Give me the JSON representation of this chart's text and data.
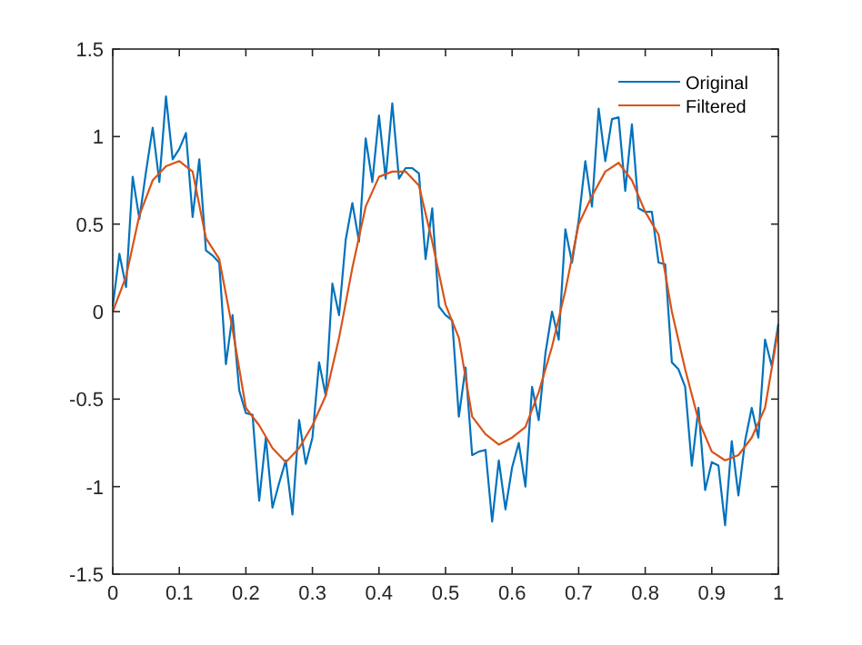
{
  "chart_data": {
    "type": "line",
    "xlim": [
      0,
      1
    ],
    "ylim": [
      -1.5,
      1.5
    ],
    "xticks": [
      0,
      0.1,
      0.2,
      0.3,
      0.4,
      0.5,
      0.6,
      0.7,
      0.8,
      0.9,
      1
    ],
    "yticks": [
      -1.5,
      -1,
      -0.5,
      0,
      0.5,
      1,
      1.5
    ],
    "grid": false,
    "legend": "top right",
    "line_style": "solid",
    "marker": "none",
    "series": [
      {
        "name": "Original",
        "color": "#0072bd",
        "x": [
          0,
          0.01,
          0.02,
          0.03,
          0.04,
          0.05,
          0.06,
          0.07,
          0.08,
          0.09,
          0.1,
          0.11,
          0.12,
          0.13,
          0.14,
          0.15,
          0.16,
          0.17,
          0.18,
          0.19,
          0.2,
          0.21,
          0.22,
          0.23,
          0.24,
          0.25,
          0.26,
          0.27,
          0.28,
          0.29,
          0.3,
          0.31,
          0.32,
          0.33,
          0.34,
          0.35,
          0.36,
          0.37,
          0.38,
          0.39,
          0.4,
          0.41,
          0.42,
          0.43,
          0.44,
          0.45,
          0.46,
          0.47,
          0.48,
          0.49,
          0.5,
          0.51,
          0.52,
          0.53,
          0.54,
          0.55,
          0.56,
          0.57,
          0.58,
          0.59,
          0.6,
          0.61,
          0.62,
          0.63,
          0.64,
          0.65,
          0.66,
          0.67,
          0.68,
          0.69,
          0.7,
          0.71,
          0.72,
          0.73,
          0.74,
          0.75,
          0.76,
          0.77,
          0.78,
          0.79,
          0.8,
          0.81,
          0.82,
          0.83,
          0.84,
          0.85,
          0.86,
          0.87,
          0.88,
          0.89,
          0.9,
          0.91,
          0.92,
          0.93,
          0.94,
          0.95,
          0.96,
          0.97,
          0.98,
          0.99,
          1
        ],
        "values": [
          0.03,
          0.33,
          0.14,
          0.77,
          0.53,
          0.8,
          1.05,
          0.74,
          1.23,
          0.87,
          0.93,
          1.02,
          0.54,
          0.87,
          0.35,
          0.32,
          0.28,
          -0.3,
          -0.02,
          -0.45,
          -0.58,
          -0.59,
          -1.08,
          -0.72,
          -1.12,
          -0.98,
          -0.85,
          -1.16,
          -0.62,
          -0.87,
          -0.72,
          -0.29,
          -0.48,
          0.16,
          -0.02,
          0.41,
          0.62,
          0.4,
          0.99,
          0.74,
          1.12,
          0.76,
          1.19,
          0.76,
          0.82,
          0.82,
          0.79,
          0.3,
          0.59,
          0.03,
          -0.02,
          -0.05,
          -0.6,
          -0.32,
          -0.82,
          -0.8,
          -0.79,
          -1.2,
          -0.85,
          -1.13,
          -0.89,
          -0.75,
          -1.0,
          -0.43,
          -0.62,
          -0.24,
          0.0,
          -0.16,
          0.47,
          0.28,
          0.52,
          0.86,
          0.6,
          1.16,
          0.86,
          1.1,
          1.11,
          0.69,
          1.07,
          0.59,
          0.57,
          0.57,
          0.28,
          0.27,
          -0.29,
          -0.33,
          -0.43,
          -0.88,
          -0.55,
          -1.02,
          -0.86,
          -0.88,
          -1.22,
          -0.74,
          -1.05,
          -0.74,
          -0.55,
          -0.72,
          -0.16,
          -0.31,
          -0.07
        ]
      },
      {
        "name": "Filtered",
        "color": "#d95319",
        "x": [
          0,
          0.02,
          0.04,
          0.06,
          0.08,
          0.1,
          0.12,
          0.14,
          0.16,
          0.18,
          0.2,
          0.22,
          0.24,
          0.26,
          0.28,
          0.3,
          0.32,
          0.34,
          0.36,
          0.38,
          0.4,
          0.42,
          0.44,
          0.46,
          0.48,
          0.5,
          0.52,
          0.54,
          0.56,
          0.58,
          0.6,
          0.62,
          0.64,
          0.66,
          0.68,
          0.7,
          0.72,
          0.74,
          0.76,
          0.78,
          0.8,
          0.82,
          0.84,
          0.86,
          0.88,
          0.9,
          0.92,
          0.94,
          0.96,
          0.98,
          1
        ],
        "values": [
          0,
          0.2,
          0.55,
          0.75,
          0.83,
          0.86,
          0.8,
          0.42,
          0.3,
          -0.1,
          -0.55,
          -0.65,
          -0.78,
          -0.86,
          -0.78,
          -0.65,
          -0.48,
          -0.15,
          0.25,
          0.6,
          0.77,
          0.8,
          0.8,
          0.72,
          0.4,
          0.04,
          -0.15,
          -0.6,
          -0.7,
          -0.76,
          -0.72,
          -0.66,
          -0.46,
          -0.2,
          0.12,
          0.5,
          0.66,
          0.8,
          0.85,
          0.75,
          0.57,
          0.44,
          0,
          -0.33,
          -0.62,
          -0.8,
          -0.85,
          -0.82,
          -0.72,
          -0.55,
          -0.1
        ]
      }
    ]
  }
}
